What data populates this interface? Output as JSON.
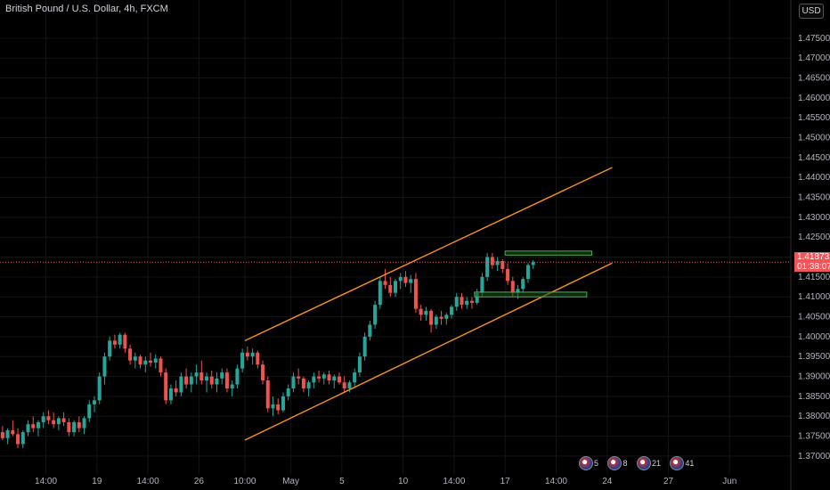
{
  "header": {
    "title": "British Pound / U.S. Dollar, 4h, FXCM",
    "currency": "USD"
  },
  "price_tag": {
    "price": "1.41873",
    "countdown": "01:38:07",
    "color": "#f0555a"
  },
  "events": [
    {
      "icon": "flag-icon",
      "count": "5"
    },
    {
      "icon": "flag-icon",
      "count": "8"
    },
    {
      "icon": "flag-icon",
      "count": "21"
    },
    {
      "icon": "flag-icon",
      "count": "41"
    }
  ],
  "colors": {
    "up": "#26a69a",
    "down": "#ef5350",
    "channel": "#f7931a",
    "zone_fill": "#1e4d1e",
    "zone_stroke": "#4caf50",
    "grid": "#141414",
    "axis": "#b2b5be",
    "price_line": "#f0555a"
  },
  "chart_data": {
    "type": "candlestick",
    "title": "British Pound / U.S. Dollar, 4h, FXCM",
    "ylim": [
      1.3655,
      1.4846
    ],
    "yticks": [
      "1.37000",
      "1.37500",
      "1.38000",
      "1.38500",
      "1.39000",
      "1.39500",
      "1.40000",
      "1.40500",
      "1.41000",
      "1.41500",
      "1.42000",
      "1.42500",
      "1.43000",
      "1.43500",
      "1.44000",
      "1.44500",
      "1.45000",
      "1.45500",
      "1.46000",
      "1.46500",
      "1.47000",
      "1.47500"
    ],
    "xlim": [
      0,
      155
    ],
    "xticks": [
      {
        "label": "14:00",
        "x": 9
      },
      {
        "label": "19",
        "x": 19
      },
      {
        "label": "14:00",
        "x": 29
      },
      {
        "label": "26",
        "x": 39
      },
      {
        "label": "10:00",
        "x": 48
      },
      {
        "label": "May",
        "x": 57
      },
      {
        "label": "5",
        "x": 67
      },
      {
        "label": "10",
        "x": 79
      },
      {
        "label": "14:00",
        "x": 89
      },
      {
        "label": "17",
        "x": 99
      },
      {
        "label": "14:00",
        "x": 109
      },
      {
        "label": "24",
        "x": 119
      },
      {
        "label": "27",
        "x": 131
      },
      {
        "label": "Jun",
        "x": 143
      }
    ],
    "last_price": 1.41873,
    "candles": [
      [
        1.376,
        1.3775,
        1.374,
        1.3745
      ],
      [
        1.3745,
        1.377,
        1.373,
        1.3765
      ],
      [
        1.3765,
        1.379,
        1.375,
        1.3755
      ],
      [
        1.3755,
        1.377,
        1.372,
        1.373
      ],
      [
        1.373,
        1.3765,
        1.372,
        1.376
      ],
      [
        1.376,
        1.379,
        1.375,
        1.378
      ],
      [
        1.378,
        1.38,
        1.376,
        1.377
      ],
      [
        1.377,
        1.379,
        1.375,
        1.3785
      ],
      [
        1.3785,
        1.381,
        1.377,
        1.38
      ],
      [
        1.38,
        1.3815,
        1.378,
        1.379
      ],
      [
        1.379,
        1.381,
        1.377,
        1.378
      ],
      [
        1.378,
        1.38,
        1.3765,
        1.3795
      ],
      [
        1.3795,
        1.381,
        1.3775,
        1.3785
      ],
      [
        1.3785,
        1.3795,
        1.375,
        1.376
      ],
      [
        1.376,
        1.379,
        1.375,
        1.3785
      ],
      [
        1.3785,
        1.38,
        1.376,
        1.377
      ],
      [
        1.377,
        1.38,
        1.3755,
        1.3795
      ],
      [
        1.3795,
        1.384,
        1.3785,
        1.383
      ],
      [
        1.383,
        1.385,
        1.381,
        1.384
      ],
      [
        1.384,
        1.391,
        1.383,
        1.39
      ],
      [
        1.39,
        1.396,
        1.388,
        1.395
      ],
      [
        1.395,
        1.4,
        1.394,
        1.399
      ],
      [
        1.399,
        1.4005,
        1.397,
        1.398
      ],
      [
        1.398,
        1.401,
        1.397,
        1.4005
      ],
      [
        1.4005,
        1.401,
        1.396,
        1.397
      ],
      [
        1.397,
        1.398,
        1.393,
        1.394
      ],
      [
        1.394,
        1.396,
        1.392,
        1.395
      ],
      [
        1.395,
        1.3955,
        1.392,
        1.393
      ],
      [
        1.393,
        1.395,
        1.391,
        1.394
      ],
      [
        1.394,
        1.396,
        1.3925,
        1.3935
      ],
      [
        1.3935,
        1.3955,
        1.392,
        1.3945
      ],
      [
        1.3945,
        1.395,
        1.39,
        1.391
      ],
      [
        1.391,
        1.392,
        1.383,
        1.384
      ],
      [
        1.384,
        1.388,
        1.383,
        1.387
      ],
      [
        1.387,
        1.389,
        1.385,
        1.386
      ],
      [
        1.386,
        1.391,
        1.385,
        1.39
      ],
      [
        1.39,
        1.392,
        1.387,
        1.388
      ],
      [
        1.388,
        1.391,
        1.386,
        1.39
      ],
      [
        1.39,
        1.393,
        1.388,
        1.391
      ],
      [
        1.391,
        1.394,
        1.388,
        1.389
      ],
      [
        1.389,
        1.391,
        1.386,
        1.39
      ],
      [
        1.39,
        1.3915,
        1.387,
        1.388
      ],
      [
        1.388,
        1.391,
        1.386,
        1.3895
      ],
      [
        1.3895,
        1.392,
        1.388,
        1.391
      ],
      [
        1.391,
        1.392,
        1.386,
        1.387
      ],
      [
        1.387,
        1.389,
        1.385,
        1.388
      ],
      [
        1.388,
        1.393,
        1.387,
        1.392
      ],
      [
        1.392,
        1.397,
        1.391,
        1.396
      ],
      [
        1.396,
        1.3975,
        1.394,
        1.395
      ],
      [
        1.395,
        1.397,
        1.393,
        1.396
      ],
      [
        1.396,
        1.3965,
        1.392,
        1.393
      ],
      [
        1.393,
        1.394,
        1.388,
        1.389
      ],
      [
        1.389,
        1.39,
        1.381,
        1.382
      ],
      [
        1.382,
        1.385,
        1.38,
        1.383
      ],
      [
        1.383,
        1.3845,
        1.3805,
        1.3815
      ],
      [
        1.3815,
        1.386,
        1.381,
        1.385
      ],
      [
        1.385,
        1.388,
        1.384,
        1.387
      ],
      [
        1.387,
        1.391,
        1.386,
        1.39
      ],
      [
        1.39,
        1.392,
        1.388,
        1.3895
      ],
      [
        1.3895,
        1.39,
        1.386,
        1.387
      ],
      [
        1.387,
        1.389,
        1.385,
        1.3885
      ],
      [
        1.3885,
        1.391,
        1.387,
        1.39
      ],
      [
        1.39,
        1.3915,
        1.3885,
        1.3895
      ],
      [
        1.3895,
        1.391,
        1.388,
        1.3905
      ],
      [
        1.3905,
        1.3915,
        1.388,
        1.389
      ],
      [
        1.389,
        1.3905,
        1.387,
        1.39
      ],
      [
        1.39,
        1.391,
        1.388,
        1.3885
      ],
      [
        1.3885,
        1.39,
        1.386,
        1.387
      ],
      [
        1.387,
        1.389,
        1.386,
        1.3885
      ],
      [
        1.3885,
        1.392,
        1.3875,
        1.391
      ],
      [
        1.391,
        1.396,
        1.39,
        1.395
      ],
      [
        1.395,
        1.401,
        1.394,
        1.4
      ],
      [
        1.4,
        1.404,
        1.399,
        1.403
      ],
      [
        1.403,
        1.409,
        1.402,
        1.408
      ],
      [
        1.408,
        1.415,
        1.407,
        1.414
      ],
      [
        1.414,
        1.417,
        1.412,
        1.413
      ],
      [
        1.413,
        1.415,
        1.41,
        1.411
      ],
      [
        1.411,
        1.4145,
        1.41,
        1.414
      ],
      [
        1.414,
        1.416,
        1.412,
        1.415
      ],
      [
        1.415,
        1.4165,
        1.4125,
        1.4135
      ],
      [
        1.4135,
        1.4155,
        1.411,
        1.4145
      ],
      [
        1.4145,
        1.416,
        1.406,
        1.407
      ],
      [
        1.407,
        1.408,
        1.404,
        1.4055
      ],
      [
        1.4055,
        1.4075,
        1.404,
        1.4065
      ],
      [
        1.4065,
        1.407,
        1.401,
        1.403
      ],
      [
        1.403,
        1.4055,
        1.402,
        1.405
      ],
      [
        1.405,
        1.4065,
        1.403,
        1.4045
      ],
      [
        1.4045,
        1.406,
        1.403,
        1.4055
      ],
      [
        1.4055,
        1.408,
        1.4045,
        1.4075
      ],
      [
        1.4075,
        1.411,
        1.4065,
        1.41
      ],
      [
        1.41,
        1.411,
        1.407,
        1.408
      ],
      [
        1.408,
        1.41,
        1.407,
        1.409
      ],
      [
        1.409,
        1.41,
        1.407,
        1.4085
      ],
      [
        1.4085,
        1.412,
        1.408,
        1.411
      ],
      [
        1.411,
        1.416,
        1.41,
        1.415
      ],
      [
        1.415,
        1.421,
        1.414,
        1.42
      ],
      [
        1.42,
        1.421,
        1.417,
        1.418
      ],
      [
        1.418,
        1.42,
        1.4165,
        1.419
      ],
      [
        1.419,
        1.4195,
        1.416,
        1.417
      ],
      [
        1.417,
        1.4185,
        1.413,
        1.414
      ],
      [
        1.414,
        1.415,
        1.41,
        1.411
      ],
      [
        1.411,
        1.413,
        1.4095,
        1.412
      ],
      [
        1.412,
        1.415,
        1.411,
        1.4145
      ],
      [
        1.4145,
        1.4185,
        1.4135,
        1.418
      ],
      [
        1.418,
        1.4192,
        1.417,
        1.41873
      ]
    ],
    "channel_upper": [
      {
        "x": 48,
        "y": 1.399
      },
      {
        "x": 120,
        "y": 1.4425
      }
    ],
    "channel_lower": [
      {
        "x": 48,
        "y": 1.374
      },
      {
        "x": 120,
        "y": 1.4185
      }
    ],
    "zones": [
      {
        "x0": 99,
        "x1": 116,
        "y0": 1.4205,
        "y1": 1.4215
      },
      {
        "x0": 93,
        "x1": 115,
        "y0": 1.41,
        "y1": 1.4112
      }
    ]
  }
}
